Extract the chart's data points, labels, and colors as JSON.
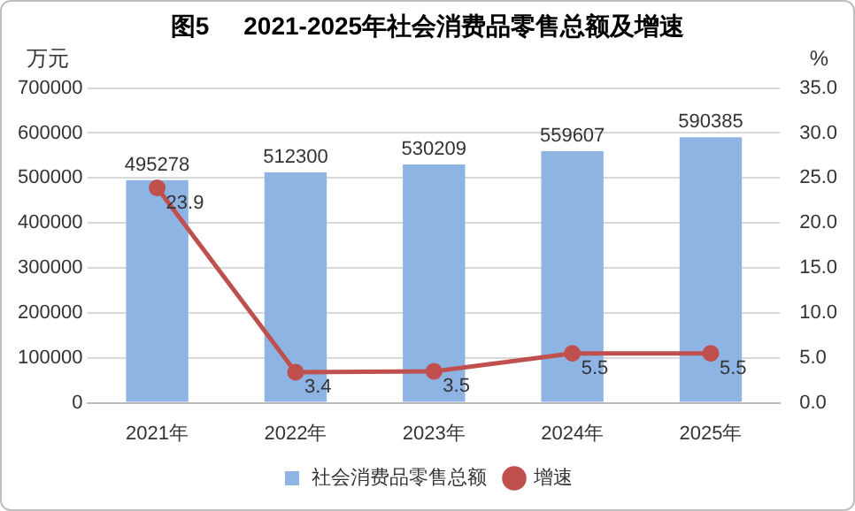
{
  "chart_data": {
    "type": "bar",
    "title": "图5     2021-2025年社会消费品零售总额及增速",
    "ylabel": "万元",
    "y2label": "%",
    "categories": [
      "2021年",
      "2022年",
      "2023年",
      "2024年",
      "2025年"
    ],
    "series": [
      {
        "name": "社会消费品零售总额",
        "color": "#8eb4e3",
        "values": [
          495278,
          512300,
          530209,
          559607,
          590385
        ]
      },
      {
        "name": "增速",
        "type": "line",
        "axis": "y2",
        "color": "#c0504d",
        "marker": "circle",
        "values": [
          23.9,
          3.4,
          3.5,
          5.5,
          5.5
        ]
      }
    ],
    "ylim": [
      0,
      700000
    ],
    "yticks": [
      0,
      100000,
      200000,
      300000,
      400000,
      500000,
      600000,
      700000
    ],
    "y2lim": [
      0,
      35
    ],
    "y2ticks": [
      {
        "value": 0,
        "label": "0.0"
      },
      {
        "value": 5,
        "label": "5.0"
      },
      {
        "value": 10,
        "label": "10.0"
      },
      {
        "value": 15,
        "label": "15.0"
      },
      {
        "value": 20,
        "label": "20.0"
      },
      {
        "value": 25,
        "label": "25.0"
      },
      {
        "value": 30,
        "label": "30.0"
      },
      {
        "value": 35,
        "label": "35.0"
      }
    ],
    "grid": "y",
    "legend": "bottom",
    "data_labels": true
  }
}
